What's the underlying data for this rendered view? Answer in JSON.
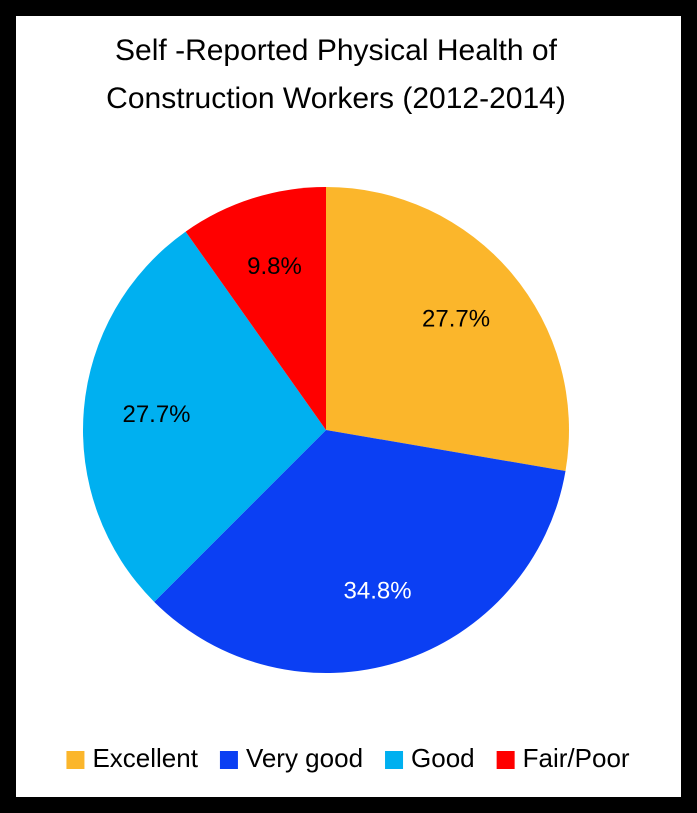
{
  "chart_data": {
    "type": "pie",
    "title": [
      "Self -Reported Physical Health of",
      "Construction Workers (2012-2014)"
    ],
    "categories": [
      "Excellent",
      "Very good",
      "Good",
      "Fair/Poor"
    ],
    "values": [
      27.7,
      34.8,
      27.7,
      9.8
    ],
    "value_labels": [
      "27.7%",
      "34.8%",
      "27.7%",
      "9.8%"
    ],
    "colors": [
      "#fbb62b",
      "#0b3ff3",
      "#00b0f0",
      "#ff0000"
    ],
    "label_colors": [
      "#000000",
      "#ffffff",
      "#000000",
      "#000000"
    ],
    "legend": "bottom"
  }
}
